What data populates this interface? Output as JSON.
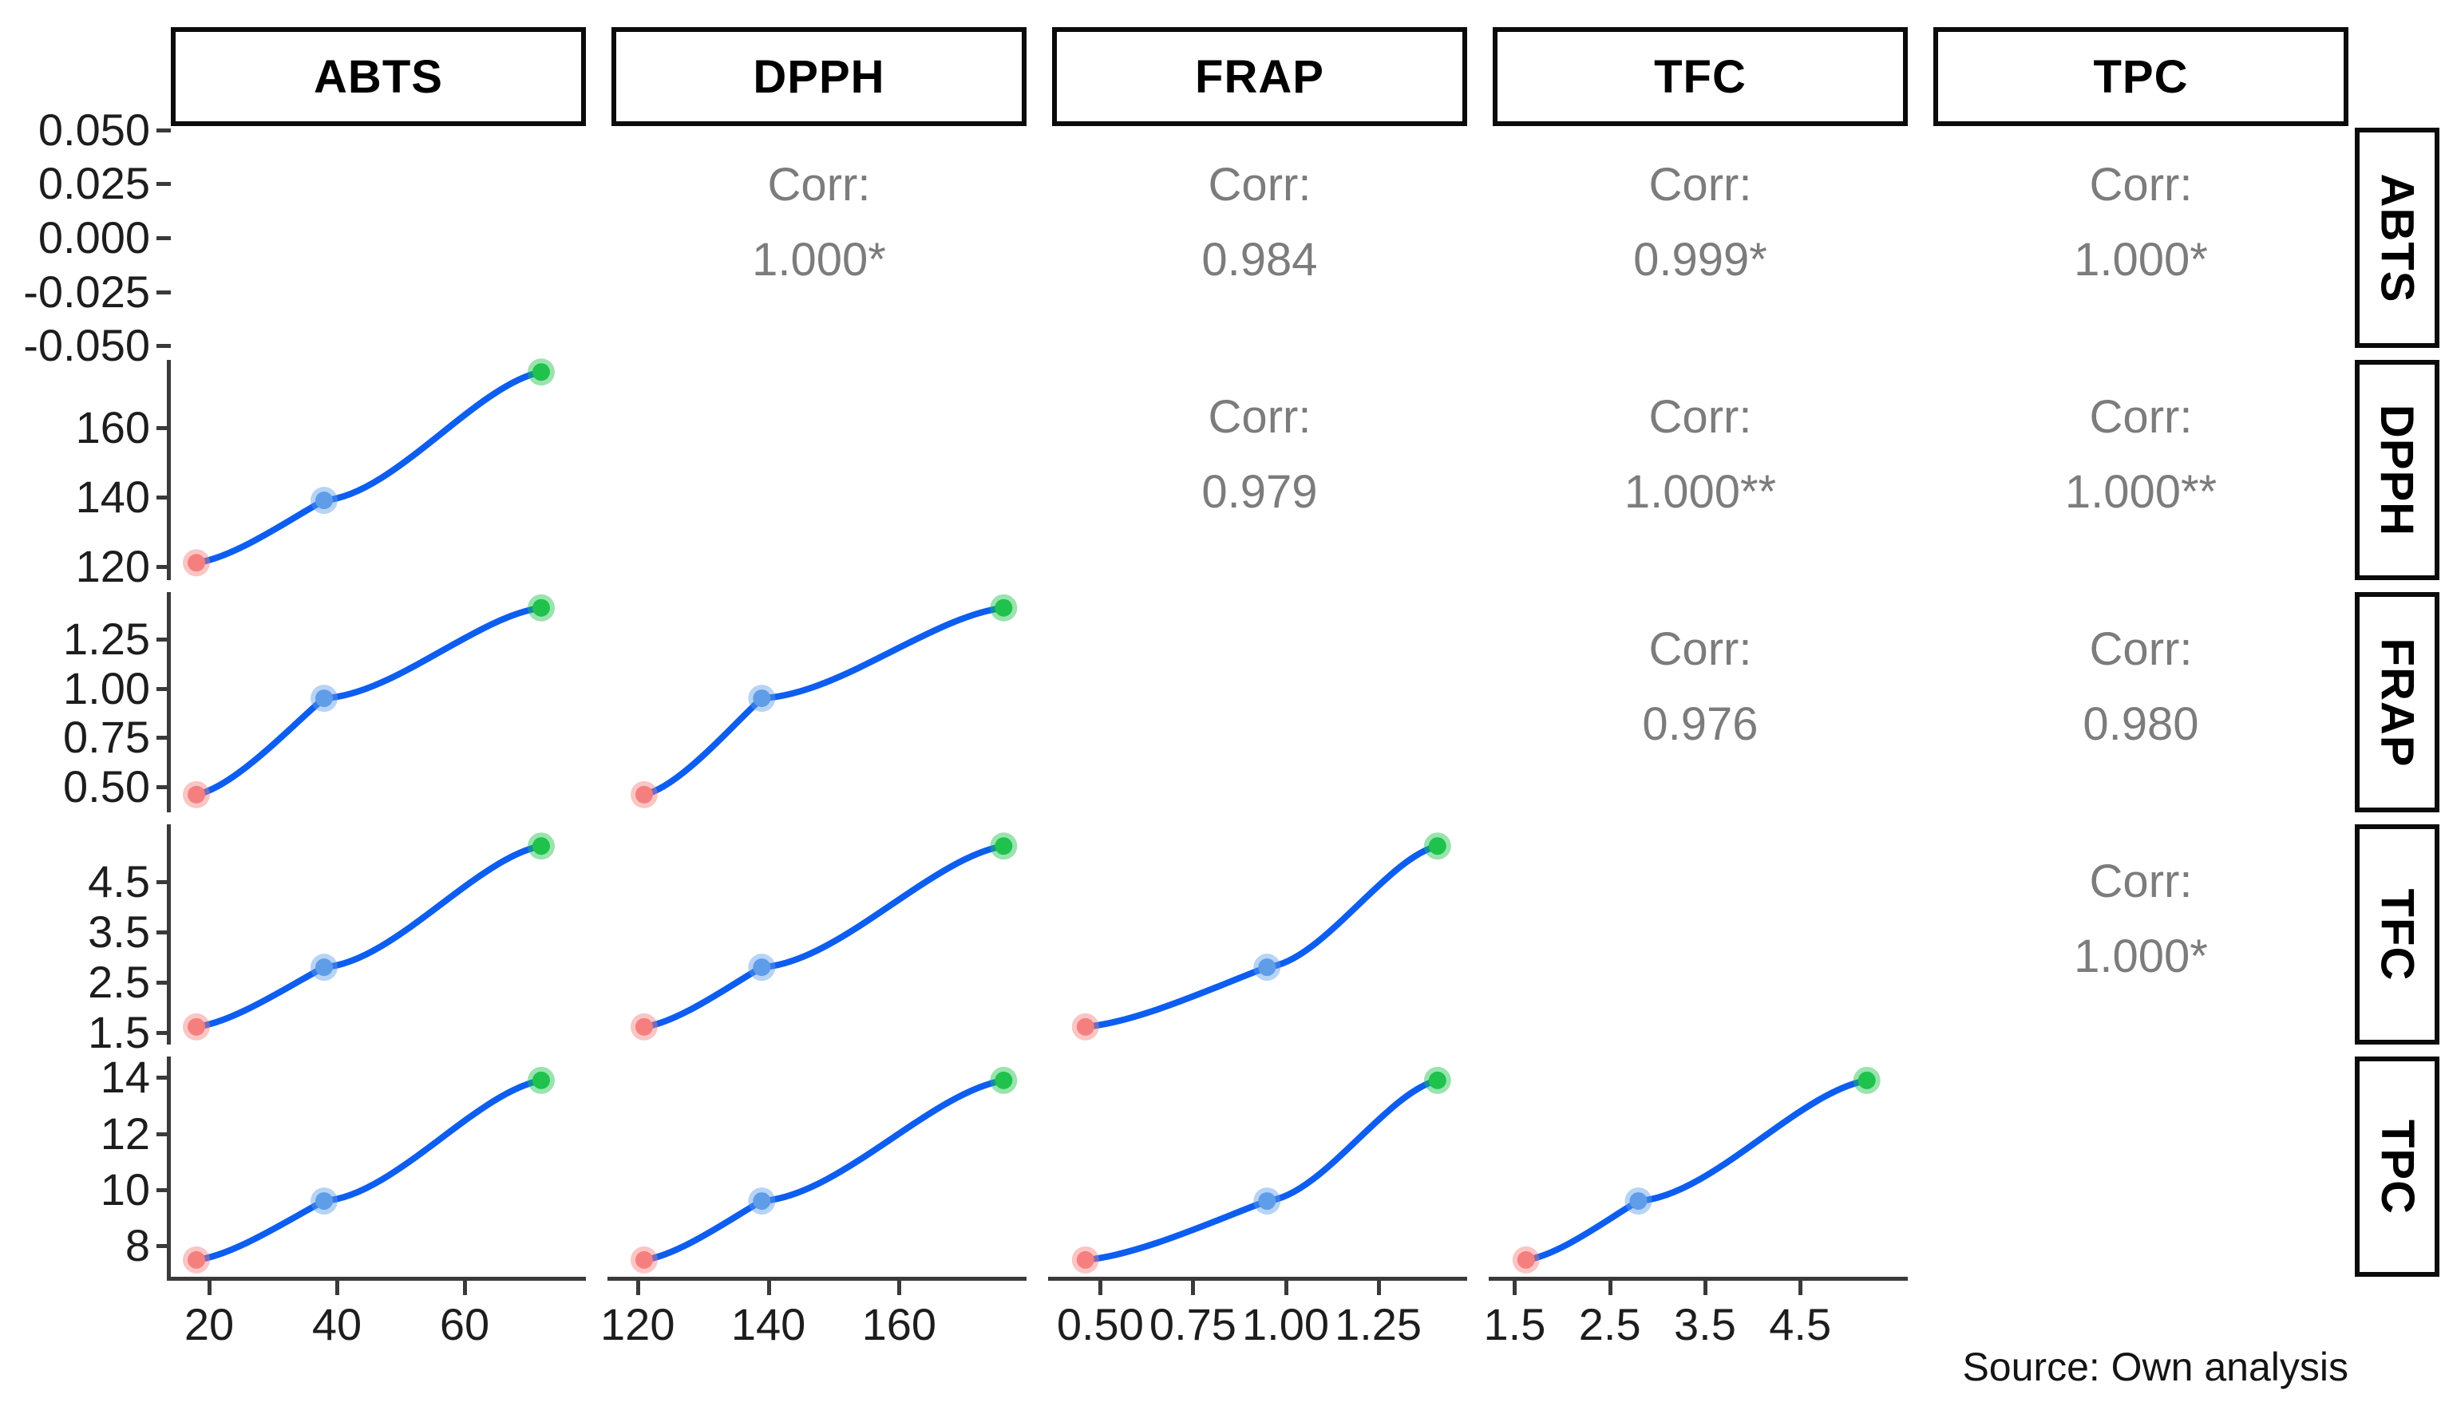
{
  "figure": {
    "source_note": "Source: Own analysis"
  },
  "chart_data": {
    "type": "scatter",
    "subtype": "pairs-matrix (ggpairs correlation matrix with smooth lines)",
    "title": "",
    "variables": [
      "ABTS",
      "DPPH",
      "FRAP",
      "TFC",
      "TPC"
    ],
    "corr_prefix": "Corr:",
    "correlations": [
      {
        "row": "ABTS",
        "col": "DPPH",
        "value": "1.000*"
      },
      {
        "row": "ABTS",
        "col": "FRAP",
        "value": "0.984"
      },
      {
        "row": "ABTS",
        "col": "TFC",
        "value": "0.999*"
      },
      {
        "row": "ABTS",
        "col": "TPC",
        "value": "1.000*"
      },
      {
        "row": "DPPH",
        "col": "FRAP",
        "value": "0.979"
      },
      {
        "row": "DPPH",
        "col": "TFC",
        "value": "1.000**"
      },
      {
        "row": "DPPH",
        "col": "TPC",
        "value": "1.000**"
      },
      {
        "row": "FRAP",
        "col": "TFC",
        "value": "0.976"
      },
      {
        "row": "FRAP",
        "col": "TPC",
        "value": "0.980"
      },
      {
        "row": "TFC",
        "col": "TPC",
        "value": "1.000*"
      }
    ],
    "samples": {
      "comment_points": "three observations per variable, drawn low-to-high as red, light-blue, green",
      "ABTS": [
        18,
        38,
        72
      ],
      "DPPH": [
        121,
        139,
        176
      ],
      "FRAP": [
        0.46,
        0.95,
        1.41
      ],
      "TFC": [
        1.62,
        2.8,
        5.2
      ],
      "TPC": [
        7.5,
        9.6,
        13.9
      ]
    },
    "axes": {
      "ABTS": {
        "range": [
          14,
          79
        ],
        "ticks": [
          "20",
          "40",
          "60"
        ]
      },
      "DPPH": {
        "range": [
          116,
          179.5
        ],
        "ticks": [
          "120",
          "140",
          "160"
        ]
      },
      "FRAP": {
        "range": [
          0.37,
          1.49
        ],
        "ticks": [
          "0.50",
          "0.75",
          "1.00",
          "1.25"
        ]
      },
      "TFC": {
        "range": [
          1.27,
          5.63
        ],
        "ticks": [
          "1.5",
          "2.5",
          "3.5",
          "4.5"
        ]
      },
      "TPC": {
        "range": [
          6.9,
          14.75
        ],
        "ticks": [
          "8",
          "10",
          "12",
          "14"
        ]
      }
    },
    "diag_axis": {
      "variable": "ABTS",
      "range": [
        -0.051,
        0.051
      ],
      "ticks": [
        "0.050",
        "0.025",
        "0.000",
        "-0.025",
        "-0.050"
      ]
    },
    "layout": {
      "grid": "5x5",
      "upper_triangle": "correlation text",
      "lower_triangle": "smooth line with 3 points",
      "diagonal": "blank",
      "legend": "none"
    },
    "colors": {
      "line": "#0d5ef0",
      "point_low": "#f57f7f",
      "point_mid": "#5f9de8",
      "point_high": "#1fc24c",
      "corr_text": "#7c7c7c",
      "axis": "#3a3a3a",
      "strip_border": "#0b0b0b"
    },
    "source_note": "Source: Own analysis"
  }
}
